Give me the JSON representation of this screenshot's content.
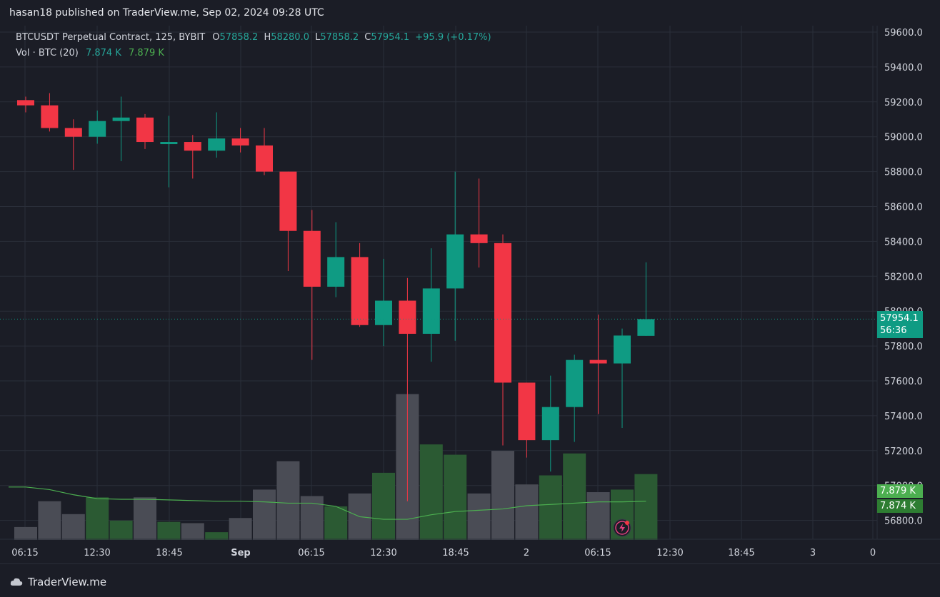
{
  "header": {
    "publisher_line": "hasan18 published on TraderView.me, Sep 02, 2024 09:28 UTC"
  },
  "footer": {
    "brand": "TraderView.me"
  },
  "legend": {
    "symbol": "BTCUSDT Perpetual Contract, 125, BYBIT",
    "o_label": "O",
    "o_value": "57858.2",
    "h_label": "H",
    "h_value": "58280.0",
    "l_label": "L",
    "l_value": "57858.2",
    "c_label": "C",
    "c_value": "57954.1",
    "change": "+95.9 (+0.17%)",
    "vol_label": "Vol · BTC (20)",
    "vol_value_1": "7.874 K",
    "vol_value_2": "7.879 K"
  },
  "price_axis": {
    "last_price": "57954.1",
    "countdown": "56:36",
    "vol_tag_1": "7.879 K",
    "vol_tag_2": "7.874 K"
  },
  "colors": {
    "up": "#0f9b83",
    "down": "#f23645",
    "vol_up": "#2b5a33",
    "vol_down": "#4a4c55",
    "vol_ma": "#4caf50",
    "background": "#1b1d26",
    "grid": "#2a2e39"
  },
  "chart_data": {
    "type": "candlestick",
    "symbol": "BTCUSDT Perpetual Contract",
    "interval": "125",
    "exchange": "BYBIT",
    "ylim": [
      56700,
      59700
    ],
    "y_ticks": [
      "59600.0",
      "59400.0",
      "59200.0",
      "59000.0",
      "58800.0",
      "58600.0",
      "58400.0",
      "58200.0",
      "58000.0",
      "57800.0",
      "57600.0",
      "57400.0",
      "57200.0",
      "57000.0",
      "56800.0"
    ],
    "x_ticks": [
      "06:15",
      "12:30",
      "18:45",
      "Sep",
      "06:15",
      "12:30",
      "18:45",
      "2",
      "06:15",
      "12:30",
      "18:45",
      "3",
      "0"
    ],
    "candles": [
      {
        "o": 59210,
        "h": 59230,
        "l": 59140,
        "c": 59180
      },
      {
        "o": 59180,
        "h": 59250,
        "l": 59030,
        "c": 59050
      },
      {
        "o": 59050,
        "h": 59100,
        "l": 58810,
        "c": 59000
      },
      {
        "o": 59000,
        "h": 59150,
        "l": 58960,
        "c": 59090
      },
      {
        "o": 59090,
        "h": 59230,
        "l": 58860,
        "c": 59110
      },
      {
        "o": 59110,
        "h": 59130,
        "l": 58930,
        "c": 58970
      },
      {
        "o": 58970,
        "h": 59120,
        "l": 58710,
        "c": 58970
      },
      {
        "o": 58970,
        "h": 59010,
        "l": 58760,
        "c": 58920
      },
      {
        "o": 58920,
        "h": 59140,
        "l": 58880,
        "c": 58990
      },
      {
        "o": 58990,
        "h": 59050,
        "l": 58910,
        "c": 58950
      },
      {
        "o": 58950,
        "h": 59050,
        "l": 58780,
        "c": 58800
      },
      {
        "o": 58800,
        "h": 58800,
        "l": 58230,
        "c": 58460
      },
      {
        "o": 58460,
        "h": 58580,
        "l": 57720,
        "c": 58140
      },
      {
        "o": 58140,
        "h": 58510,
        "l": 58080,
        "c": 58310
      },
      {
        "o": 58310,
        "h": 58390,
        "l": 57910,
        "c": 57920
      },
      {
        "o": 57920,
        "h": 58300,
        "l": 57800,
        "c": 58060
      },
      {
        "o": 58060,
        "h": 58190,
        "l": 56910,
        "c": 57870
      },
      {
        "o": 57870,
        "h": 58360,
        "l": 57710,
        "c": 58130
      },
      {
        "o": 58130,
        "h": 58800,
        "l": 57830,
        "c": 58440
      },
      {
        "o": 58440,
        "h": 58760,
        "l": 58250,
        "c": 58390
      },
      {
        "o": 58390,
        "h": 58440,
        "l": 57230,
        "c": 57590
      },
      {
        "o": 57590,
        "h": 57590,
        "l": 57160,
        "c": 57260
      },
      {
        "o": 57260,
        "h": 57630,
        "l": 57080,
        "c": 57450
      },
      {
        "o": 57450,
        "h": 57750,
        "l": 57250,
        "c": 57720
      },
      {
        "o": 57720,
        "h": 57980,
        "l": 57410,
        "c": 57700
      },
      {
        "o": 57700,
        "h": 57900,
        "l": 57330,
        "c": 57860
      },
      {
        "o": 57858.2,
        "h": 58280,
        "l": 57858.2,
        "c": 57954.1
      }
    ],
    "volume": [
      1.0,
      3.0,
      2.0,
      3.3,
      1.5,
      3.3,
      1.4,
      1.3,
      0.6,
      1.7,
      3.9,
      6.1,
      3.4,
      2.6,
      3.6,
      5.2,
      11.3,
      7.4,
      6.6,
      3.6,
      6.9,
      4.3,
      5.0,
      6.7,
      3.7,
      3.9,
      5.1
    ],
    "vol_ma": [
      4.1,
      3.9,
      3.5,
      3.2,
      3.15,
      3.15,
      3.1,
      3.05,
      3.0,
      3.0,
      2.95,
      2.85,
      2.85,
      2.6,
      1.8,
      1.6,
      1.6,
      1.95,
      2.2,
      2.3,
      2.4,
      2.65,
      2.75,
      2.85,
      2.95,
      2.95,
      3.0
    ]
  }
}
